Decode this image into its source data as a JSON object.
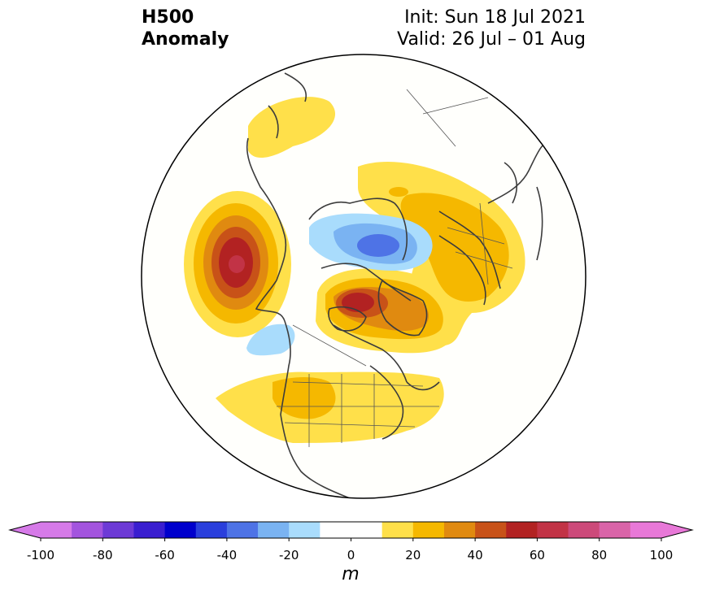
{
  "title": {
    "line1": "H500",
    "line2": "Anomaly",
    "init": "Init: Sun 18 Jul 2021",
    "valid": "Valid: 26 Jul – 01 Aug"
  },
  "colorbar": {
    "unit": "m",
    "min": -100,
    "max": 100,
    "step": 10,
    "ticks": [
      "-100",
      "-80",
      "-60",
      "-40",
      "-20",
      "0",
      "20",
      "40",
      "60",
      "80",
      "100"
    ],
    "extend": "both",
    "colors": [
      "#d67ae8",
      "#a354de",
      "#6d3ad6",
      "#3a1ed0",
      "#0000cc",
      "#2a3fdc",
      "#4e73e6",
      "#7ab3f2",
      "#a9dcfc",
      "#ffffff",
      "#ffffff",
      "#ffe04a",
      "#f5b800",
      "#e08a10",
      "#c85218",
      "#b22222",
      "#c23346",
      "#cc4a7a",
      "#d964a8",
      "#e878d8"
    ],
    "under_color": "#d67ae8",
    "over_color": "#e878d8"
  },
  "map": {
    "projection": "north-polar-stereographic",
    "region": "Northern Hemisphere (North America, North Pacific, Arctic, Greenland, Europe)",
    "anomalies": [
      {
        "name": "North Pacific / Bering ridge",
        "peak_m": 65,
        "sign": "positive"
      },
      {
        "name": "Hudson Bay / Canadian Arctic ridge",
        "peak_m": 55,
        "sign": "positive"
      },
      {
        "name": "Western Siberia / Europe ridge",
        "peak_m": 35,
        "sign": "positive"
      },
      {
        "name": "Northern Scandinavia / Barents ridge",
        "peak_m": 25,
        "sign": "positive"
      },
      {
        "name": "Central-Northern US ridge",
        "peak_m": 25,
        "sign": "positive"
      },
      {
        "name": "Arctic Ocean trough",
        "peak_m": -45,
        "sign": "negative"
      },
      {
        "name": "Gulf of Alaska trough",
        "peak_m": -15,
        "sign": "negative"
      }
    ]
  }
}
